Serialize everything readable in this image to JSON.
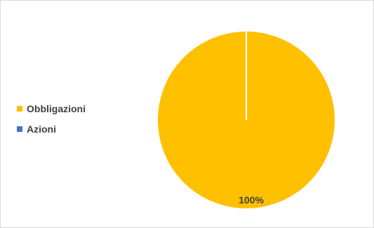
{
  "chart_data": {
    "type": "pie",
    "categories": [
      "Obbligazioni",
      "Azioni"
    ],
    "values": [
      100,
      0
    ],
    "colors": [
      "#FFC000",
      "#4472C4"
    ],
    "data_labels": [
      "100%",
      ""
    ],
    "legend_position": "left",
    "start_angle": "top"
  }
}
